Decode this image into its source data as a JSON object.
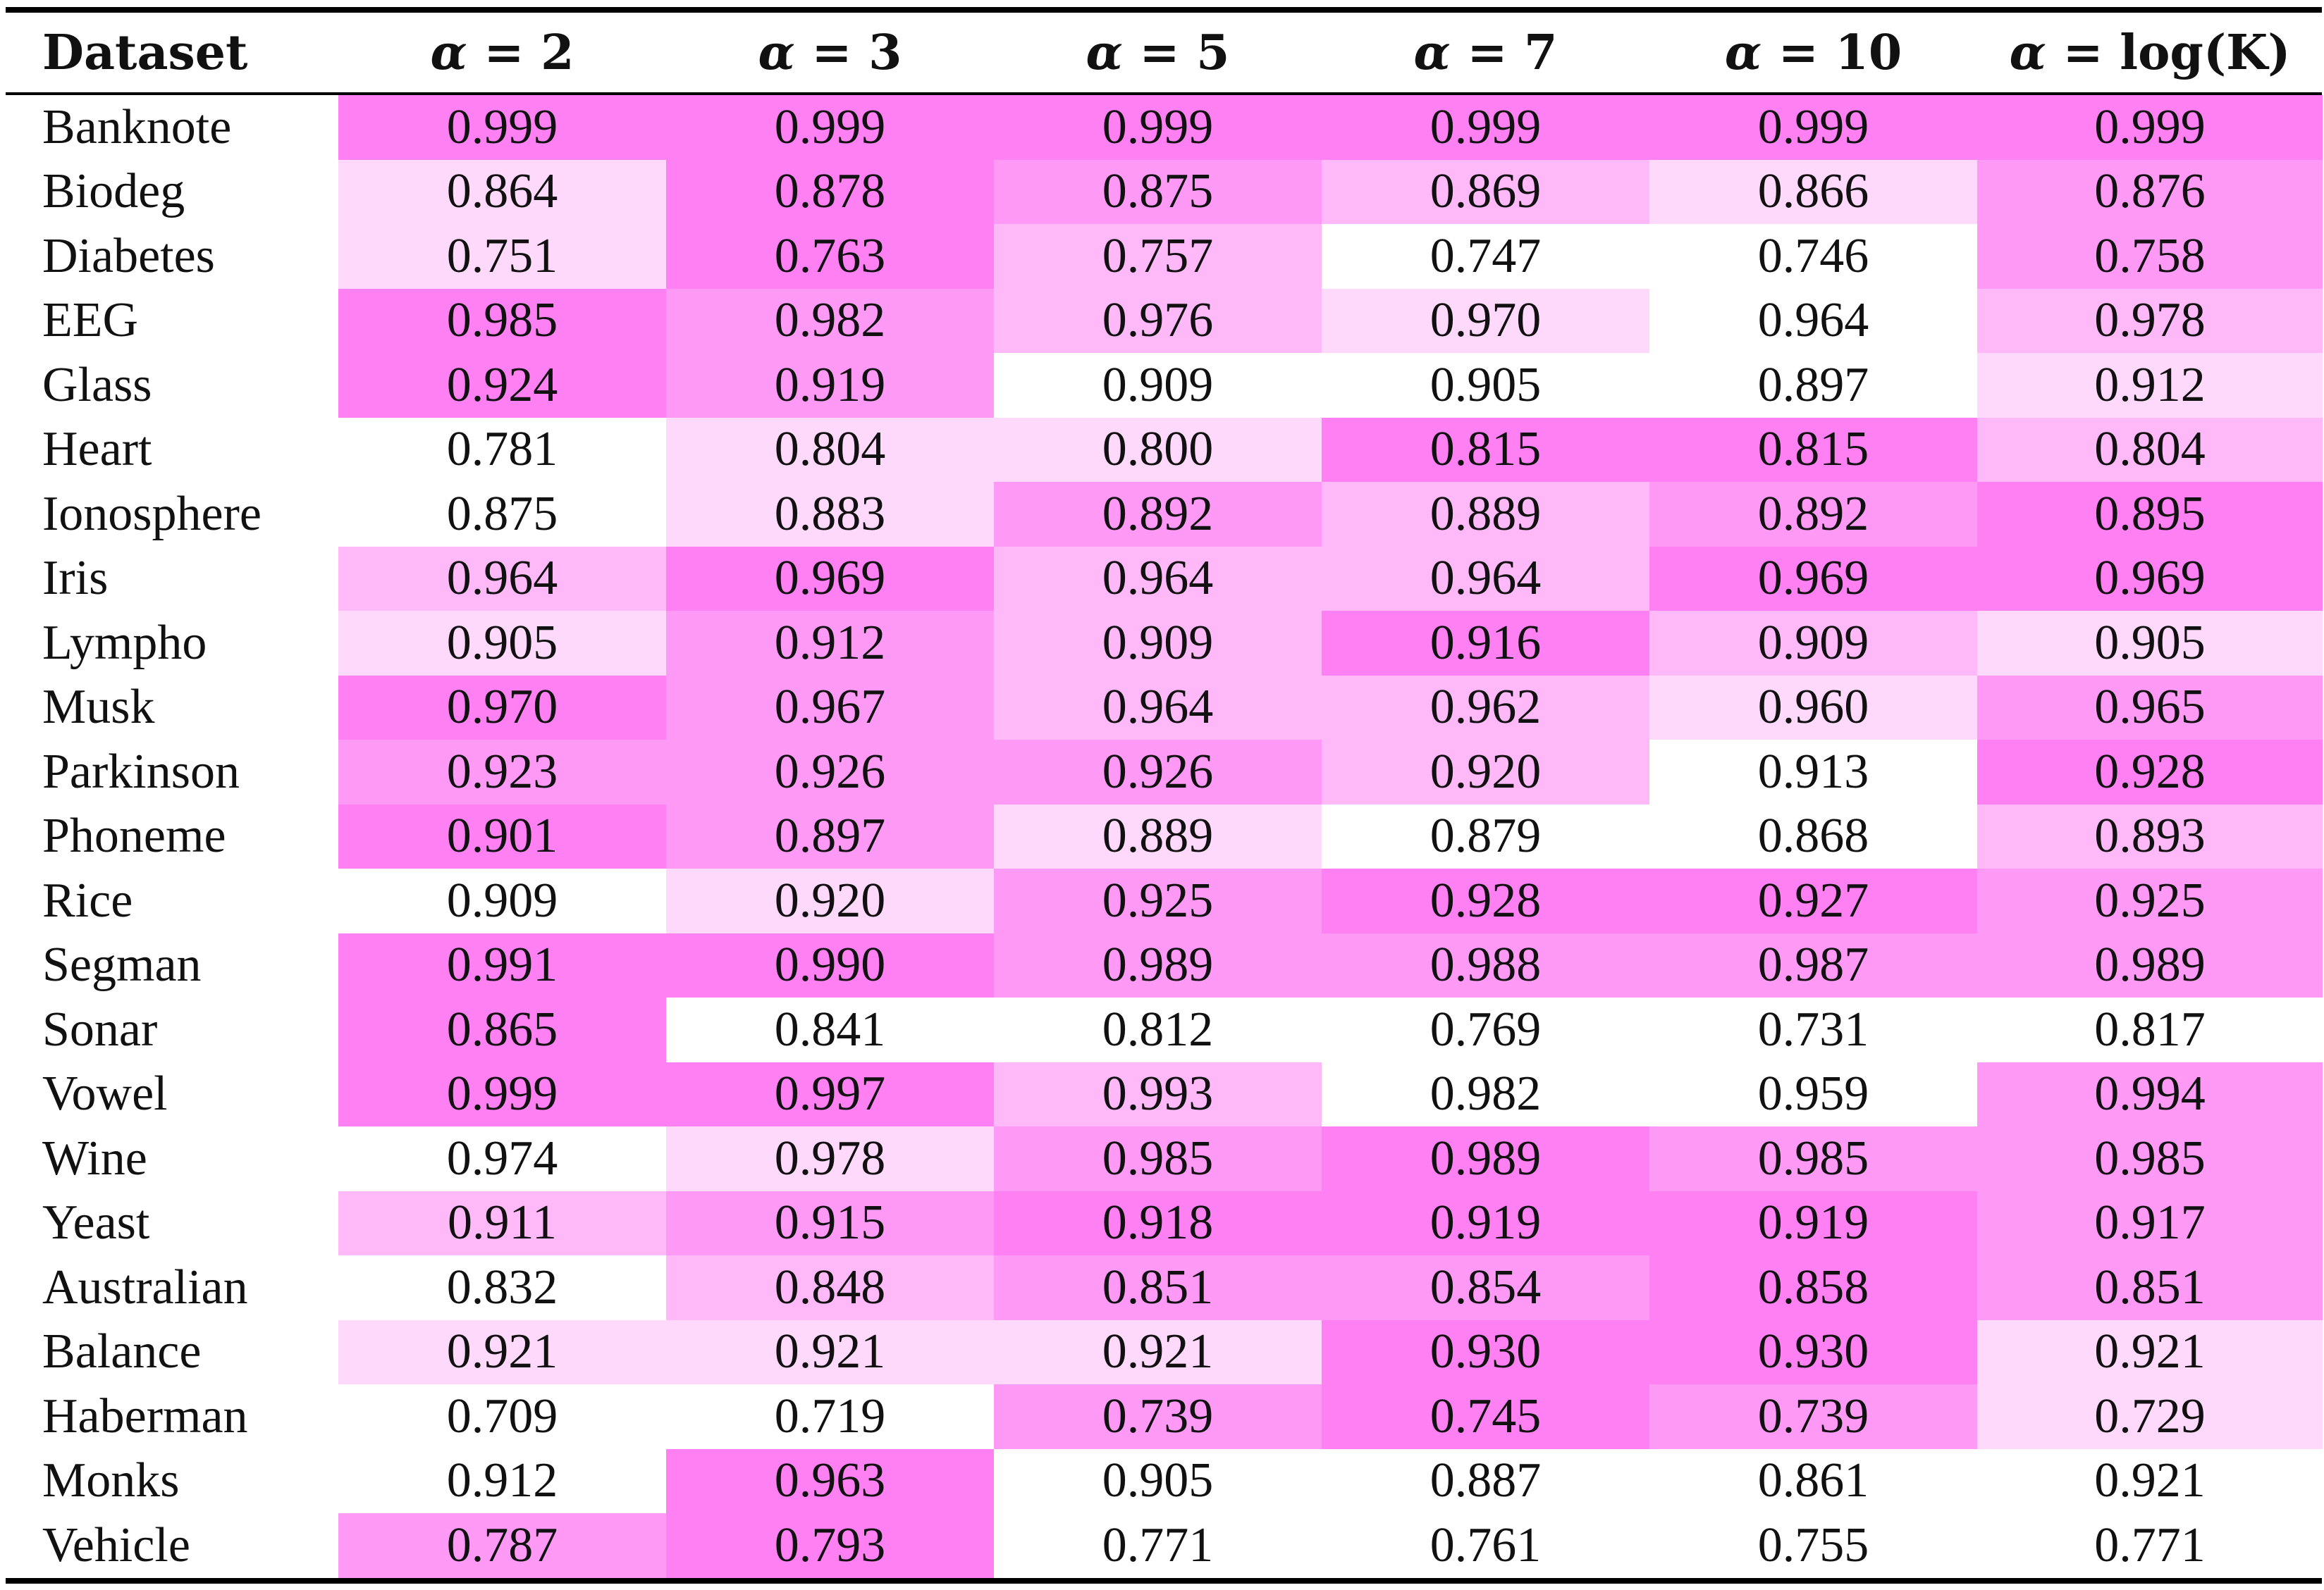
{
  "table": {
    "header_first": "Dataset",
    "columns": [
      {
        "greek": "α",
        "rest": " = 2"
      },
      {
        "greek": "α",
        "rest": " = 3"
      },
      {
        "greek": "α",
        "rest": " = 5"
      },
      {
        "greek": "α",
        "rest": " = 7"
      },
      {
        "greek": "α",
        "rest": " = 10"
      },
      {
        "greek": "α",
        "rest": " = log(K)"
      }
    ],
    "rows": [
      {
        "name": "Banknote",
        "values": [
          "0.999",
          "0.999",
          "0.999",
          "0.999",
          "0.999",
          "0.999"
        ],
        "shade": [
          4,
          4,
          4,
          4,
          4,
          4
        ]
      },
      {
        "name": "Biodeg",
        "values": [
          "0.864",
          "0.878",
          "0.875",
          "0.869",
          "0.866",
          "0.876"
        ],
        "shade": [
          1,
          4,
          3,
          2,
          1,
          3
        ]
      },
      {
        "name": "Diabetes",
        "values": [
          "0.751",
          "0.763",
          "0.757",
          "0.747",
          "0.746",
          "0.758"
        ],
        "shade": [
          1,
          4,
          2,
          0,
          0,
          3
        ]
      },
      {
        "name": "EEG",
        "values": [
          "0.985",
          "0.982",
          "0.976",
          "0.970",
          "0.964",
          "0.978"
        ],
        "shade": [
          4,
          3,
          2,
          1,
          0,
          2
        ]
      },
      {
        "name": "Glass",
        "values": [
          "0.924",
          "0.919",
          "0.909",
          "0.905",
          "0.897",
          "0.912"
        ],
        "shade": [
          4,
          3,
          0,
          0,
          0,
          1
        ]
      },
      {
        "name": "Heart",
        "values": [
          "0.781",
          "0.804",
          "0.800",
          "0.815",
          "0.815",
          "0.804"
        ],
        "shade": [
          0,
          1,
          1,
          4,
          4,
          2
        ]
      },
      {
        "name": "Ionosphere",
        "values": [
          "0.875",
          "0.883",
          "0.892",
          "0.889",
          "0.892",
          "0.895"
        ],
        "shade": [
          0,
          1,
          3,
          2,
          3,
          4
        ]
      },
      {
        "name": "Iris",
        "values": [
          "0.964",
          "0.969",
          "0.964",
          "0.964",
          "0.969",
          "0.969"
        ],
        "shade": [
          2,
          4,
          2,
          2,
          4,
          4
        ]
      },
      {
        "name": "Lympho",
        "values": [
          "0.905",
          "0.912",
          "0.909",
          "0.916",
          "0.909",
          "0.905"
        ],
        "shade": [
          1,
          3,
          2,
          4,
          2,
          1
        ]
      },
      {
        "name": "Musk",
        "values": [
          "0.970",
          "0.967",
          "0.964",
          "0.962",
          "0.960",
          "0.965"
        ],
        "shade": [
          4,
          3,
          2,
          2,
          1,
          3
        ]
      },
      {
        "name": "Parkinson",
        "values": [
          "0.923",
          "0.926",
          "0.926",
          "0.920",
          "0.913",
          "0.928"
        ],
        "shade": [
          3,
          3,
          3,
          2,
          0,
          4
        ]
      },
      {
        "name": "Phoneme",
        "values": [
          "0.901",
          "0.897",
          "0.889",
          "0.879",
          "0.868",
          "0.893"
        ],
        "shade": [
          4,
          3,
          1,
          0,
          0,
          2
        ]
      },
      {
        "name": "Rice",
        "values": [
          "0.909",
          "0.920",
          "0.925",
          "0.928",
          "0.927",
          "0.925"
        ],
        "shade": [
          0,
          1,
          3,
          4,
          4,
          3
        ]
      },
      {
        "name": "Segman",
        "values": [
          "0.991",
          "0.990",
          "0.989",
          "0.988",
          "0.987",
          "0.989"
        ],
        "shade": [
          4,
          4,
          3,
          3,
          3,
          3
        ]
      },
      {
        "name": "Sonar",
        "values": [
          "0.865",
          "0.841",
          "0.812",
          "0.769",
          "0.731",
          "0.817"
        ],
        "shade": [
          4,
          0,
          0,
          0,
          0,
          0
        ]
      },
      {
        "name": "Vowel",
        "values": [
          "0.999",
          "0.997",
          "0.993",
          "0.982",
          "0.959",
          "0.994"
        ],
        "shade": [
          4,
          4,
          2,
          0,
          0,
          3
        ]
      },
      {
        "name": "Wine",
        "values": [
          "0.974",
          "0.978",
          "0.985",
          "0.989",
          "0.985",
          "0.985"
        ],
        "shade": [
          0,
          1,
          3,
          4,
          3,
          3
        ]
      },
      {
        "name": "Yeast",
        "values": [
          "0.911",
          "0.915",
          "0.918",
          "0.919",
          "0.919",
          "0.917"
        ],
        "shade": [
          2,
          3,
          4,
          4,
          4,
          3
        ]
      },
      {
        "name": "Australian",
        "values": [
          "0.832",
          "0.848",
          "0.851",
          "0.854",
          "0.858",
          "0.851"
        ],
        "shade": [
          0,
          2,
          3,
          3,
          4,
          3
        ]
      },
      {
        "name": "Balance",
        "values": [
          "0.921",
          "0.921",
          "0.921",
          "0.930",
          "0.930",
          "0.921"
        ],
        "shade": [
          1,
          1,
          1,
          4,
          4,
          1
        ]
      },
      {
        "name": "Haberman",
        "values": [
          "0.709",
          "0.719",
          "0.739",
          "0.745",
          "0.739",
          "0.729"
        ],
        "shade": [
          0,
          0,
          3,
          4,
          3,
          1
        ]
      },
      {
        "name": "Monks",
        "values": [
          "0.912",
          "0.963",
          "0.905",
          "0.887",
          "0.861",
          "0.921"
        ],
        "shade": [
          0,
          4,
          0,
          0,
          0,
          0
        ]
      },
      {
        "name": "Vehicle",
        "values": [
          "0.787",
          "0.793",
          "0.771",
          "0.761",
          "0.755",
          "0.771"
        ],
        "shade": [
          3,
          4,
          0,
          0,
          0,
          0
        ]
      }
    ],
    "shade_colors": [
      "#ffffff",
      "#ffd9fb",
      "#ffb8f8",
      "#ff99f6",
      "#ff80f3"
    ]
  }
}
